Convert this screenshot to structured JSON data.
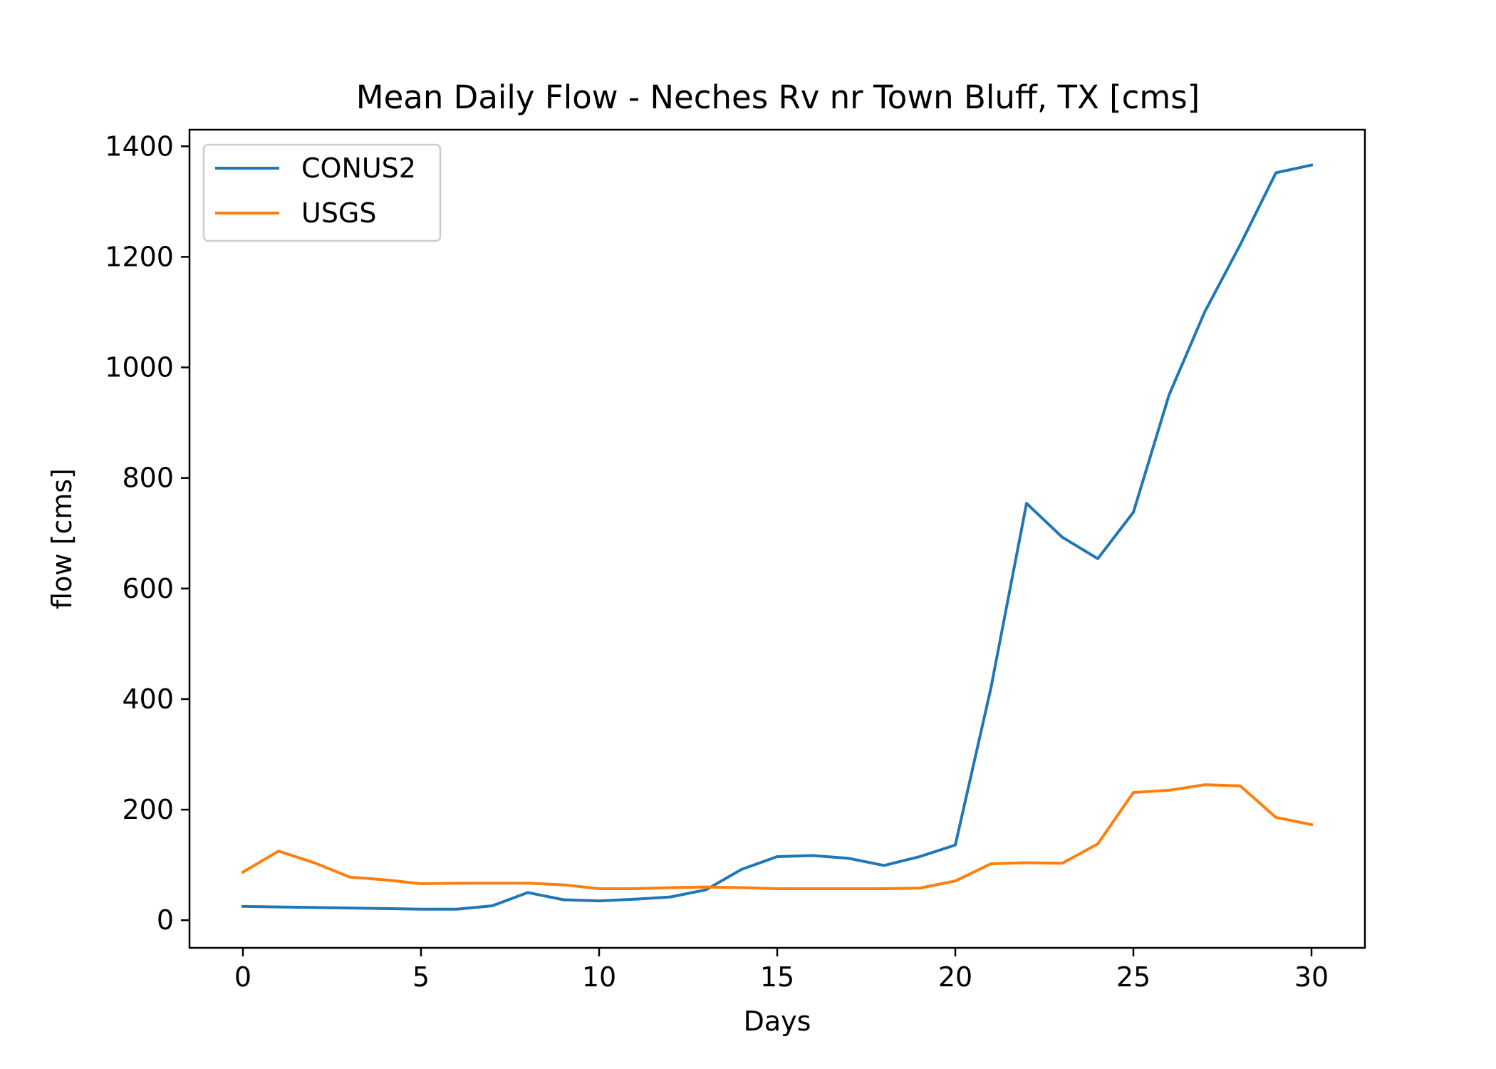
{
  "chart_data": {
    "type": "line",
    "title": "Mean Daily Flow - Neches Rv nr Town Bluff, TX [cms]",
    "xlabel": "Days",
    "ylabel": "flow [cms]",
    "xlim": [
      -1.5,
      31.5
    ],
    "ylim": [
      -50,
      1430
    ],
    "xticks": [
      0,
      5,
      10,
      15,
      20,
      25,
      30
    ],
    "yticks": [
      0,
      200,
      400,
      600,
      800,
      1000,
      1200,
      1400
    ],
    "grid": false,
    "legend": "upper left",
    "x": [
      0,
      1,
      2,
      3,
      4,
      5,
      6,
      7,
      8,
      9,
      10,
      11,
      12,
      13,
      14,
      15,
      16,
      17,
      18,
      19,
      20,
      21,
      22,
      23,
      24,
      25,
      26,
      27,
      28,
      29,
      30
    ],
    "series": [
      {
        "name": "CONUS2",
        "color": "#1f77b4",
        "values": [
          25,
          24,
          23,
          22,
          21,
          20,
          20,
          26,
          50,
          37,
          35,
          38,
          42,
          55,
          92,
          115,
          117,
          112,
          99,
          115,
          136,
          420,
          754,
          693,
          654,
          738,
          950,
          1100,
          1222,
          1352,
          1366
        ]
      },
      {
        "name": "USGS",
        "color": "#ff7f0e",
        "values": [
          87,
          125,
          104,
          78,
          73,
          66,
          67,
          67,
          67,
          64,
          57,
          57,
          59,
          60,
          59,
          57,
          57,
          57,
          57,
          58,
          71,
          102,
          104,
          103,
          138,
          231,
          235,
          245,
          243,
          186,
          173
        ]
      }
    ]
  }
}
